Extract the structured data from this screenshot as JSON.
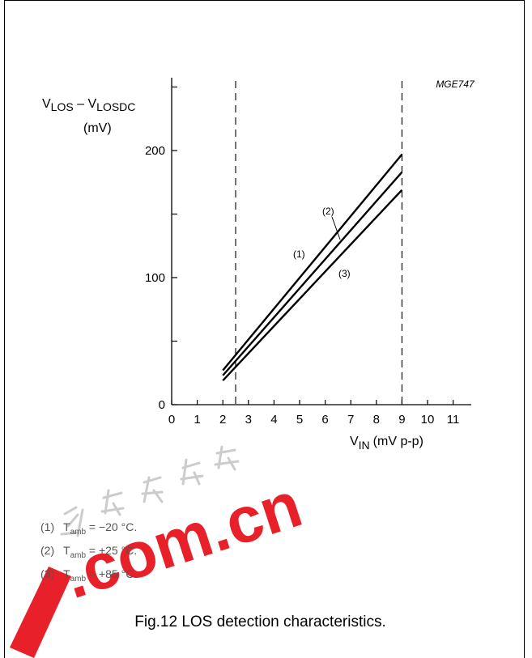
{
  "figure": {
    "code": "MGE747",
    "caption": "Fig.12  LOS detection characteristics."
  },
  "chart_data": {
    "type": "line",
    "ylabel": {
      "main_a": "V",
      "sub_a": "LOS",
      "sep": " – ",
      "main_b": "V",
      "sub_b": "LOSDC",
      "unit": "(mV)"
    },
    "xlabel": {
      "main": "V",
      "sub": "IN",
      "unit": "(mV p-p)"
    },
    "xlim": [
      0,
      11
    ],
    "ylim": [
      0,
      200
    ],
    "x_ticks": [
      "0",
      "1",
      "2",
      "3",
      "4",
      "5",
      "6",
      "7",
      "8",
      "9",
      "10",
      "11"
    ],
    "y_ticks": [
      "0",
      "100",
      "200"
    ],
    "series": [
      {
        "name": "(1)",
        "x": [
          2,
          9
        ],
        "y": [
          27,
          197
        ]
      },
      {
        "name": "(2)",
        "x": [
          2,
          9
        ],
        "y": [
          23,
          183
        ]
      },
      {
        "name": "(3)",
        "x": [
          2,
          9
        ],
        "y": [
          19,
          169
        ]
      }
    ],
    "reference_lines_x": [
      2.5,
      9
    ],
    "grid": false
  },
  "legend": [
    {
      "num": "(1)",
      "t": "T",
      "sub": "amb",
      "value": " = −20 °C."
    },
    {
      "num": "(2)",
      "t": "T",
      "sub": "amb",
      "value": " = +25 °C."
    },
    {
      "num": "(3)",
      "t": "T",
      "sub": "amb",
      "value": " = +85 °C."
    }
  ],
  "watermark": {
    "text": ".com.cn",
    "color": "#e8202a"
  }
}
